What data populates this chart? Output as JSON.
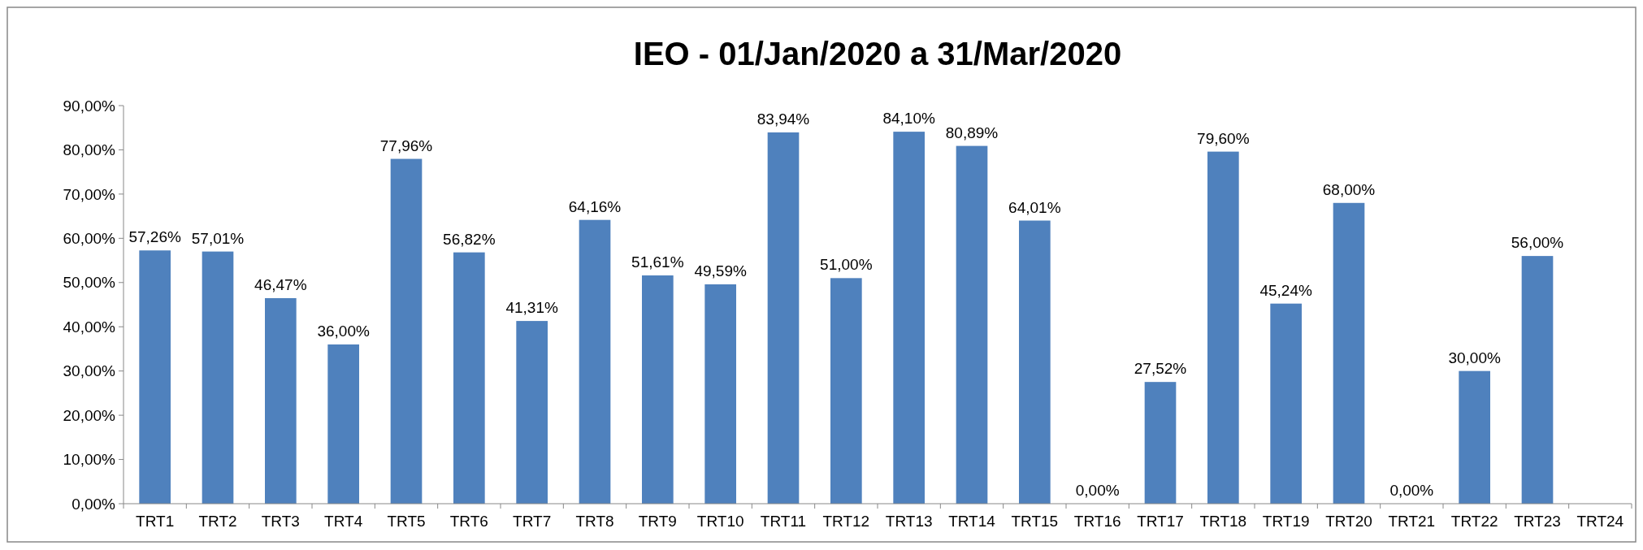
{
  "chart_data": {
    "type": "bar",
    "title": "IEO - 01/Jan/2020 a 31/Mar/2020",
    "categories": [
      "TRT1",
      "TRT2",
      "TRT3",
      "TRT4",
      "TRT5",
      "TRT6",
      "TRT7",
      "TRT8",
      "TRT9",
      "TRT10",
      "TRT11",
      "TRT12",
      "TRT13",
      "TRT14",
      "TRT15",
      "TRT16",
      "TRT17",
      "TRT18",
      "TRT19",
      "TRT20",
      "TRT21",
      "TRT22",
      "TRT23",
      "TRT24"
    ],
    "values": [
      57.26,
      57.01,
      46.47,
      36.0,
      77.96,
      56.82,
      41.31,
      64.16,
      51.61,
      49.59,
      83.94,
      51.0,
      84.1,
      80.89,
      64.01,
      0,
      27.52,
      79.6,
      45.24,
      68.0,
      0,
      30.0,
      56.0,
      null
    ],
    "value_labels": [
      "57,26%",
      "57,01%",
      "46,47%",
      "36,00%",
      "77,96%",
      "56,82%",
      "41,31%",
      "64,16%",
      "51,61%",
      "49,59%",
      "83,94%",
      "51,00%",
      "84,10%",
      "80,89%",
      "64,01%",
      "0,00%",
      "27,52%",
      "79,60%",
      "45,24%",
      "68,00%",
      "0,00%",
      "30,00%",
      "56,00%",
      null
    ],
    "color": "#4f81bd",
    "ylim": [
      0,
      90
    ],
    "yticks": [
      {
        "value": 0,
        "label": "0,00%"
      },
      {
        "value": 10,
        "label": "10,00%"
      },
      {
        "value": 20,
        "label": "20,00%"
      },
      {
        "value": 30,
        "label": "30,00%"
      },
      {
        "value": 40,
        "label": "40,00%"
      },
      {
        "value": 50,
        "label": "50,00%"
      },
      {
        "value": 60,
        "label": "60,00%"
      },
      {
        "value": 70,
        "label": "70,00%"
      },
      {
        "value": 80,
        "label": "80,00%"
      },
      {
        "value": 90,
        "label": "90,00%"
      }
    ],
    "grid": false
  }
}
